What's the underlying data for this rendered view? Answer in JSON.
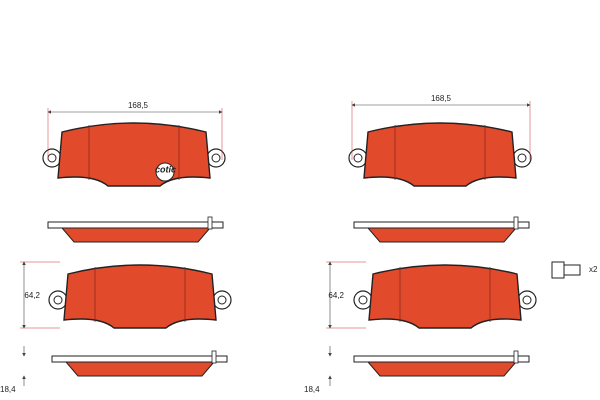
{
  "pads": [
    {
      "width_label": "168,5",
      "logo": "cotic"
    },
    {
      "width_label": "168,5"
    },
    {
      "height_label": "64,2",
      "thickness_label": "18,4"
    },
    {
      "height_label": "64,2",
      "thickness_label": "18,4"
    }
  ],
  "accessory": {
    "quantity": "x2"
  }
}
